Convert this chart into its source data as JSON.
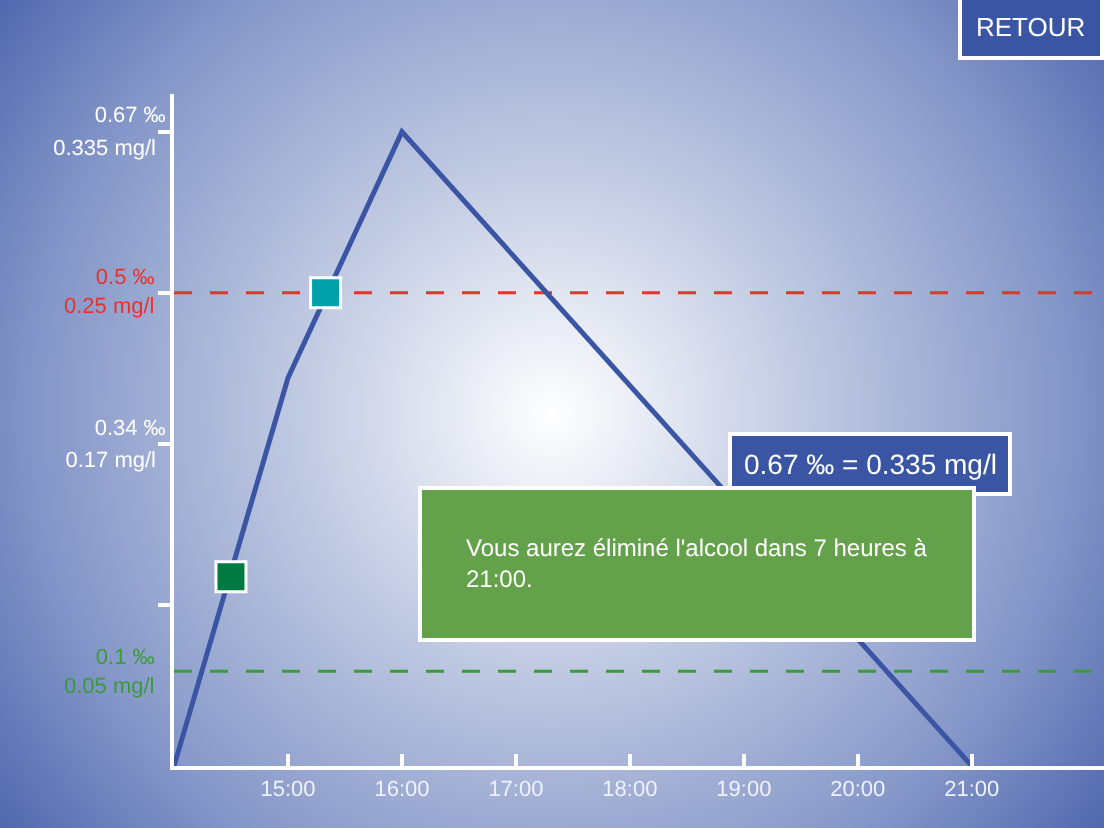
{
  "chart_data": {
    "type": "line",
    "x": [
      14,
      15,
      16,
      21
    ],
    "series": [
      {
        "color": "#3a55a4",
        "values": [
          0,
          0.41,
          0.67,
          0
        ],
        "marker": "none"
      },
      {
        "type": "scatter",
        "colors": [
          "#007a40",
          "#00a0a8"
        ],
        "x": [
          14.5,
          15.33
        ],
        "values": [
          0.2,
          0.5
        ],
        "marker": "square"
      }
    ],
    "xlim": [
      14,
      22.16
    ],
    "xticks": [
      {
        "value": 15,
        "label": "15:00"
      },
      {
        "value": 16,
        "label": "16:00"
      },
      {
        "value": 17,
        "label": "17:00"
      },
      {
        "value": 18,
        "label": "18:00"
      },
      {
        "value": 19,
        "label": "19:00"
      },
      {
        "value": 20,
        "label": "20:00"
      },
      {
        "value": 21,
        "label": "21:00"
      }
    ],
    "ylim": [
      0,
      0.71
    ],
    "yticks": [
      {
        "value": 0.67,
        "label": "0.67 ‰"
      },
      {
        "value": 0.5,
        "label": null
      },
      {
        "value": 0.34,
        "label": "0.34 ‰"
      },
      {
        "value": 0.17,
        "label": null
      }
    ],
    "y2lim": [
      0,
      0.355
    ],
    "y2ticks": [
      {
        "value": 0.335,
        "label": "0.335 mg/l"
      },
      {
        "value": 0.17,
        "label": "0.17 mg/l"
      }
    ],
    "ref_lines": [
      {
        "axis": "y",
        "value": 0.5,
        "label": "0.5 ‰\n0.25 mg/l",
        "color": "#e8322c",
        "line_style": "dashed"
      },
      {
        "axis": "y",
        "value": 0.1,
        "label": "0.1 ‰\n0.05 mg/l",
        "color": "#3c9a3c",
        "line_style": "dashed"
      }
    ],
    "annotations": [
      "RETOUR",
      "0.67 ‰ = 0.335 mg/l",
      "Vous aurez éliminé l'alcool dans 7 heures à\n21:00."
    ],
    "grid": false
  }
}
